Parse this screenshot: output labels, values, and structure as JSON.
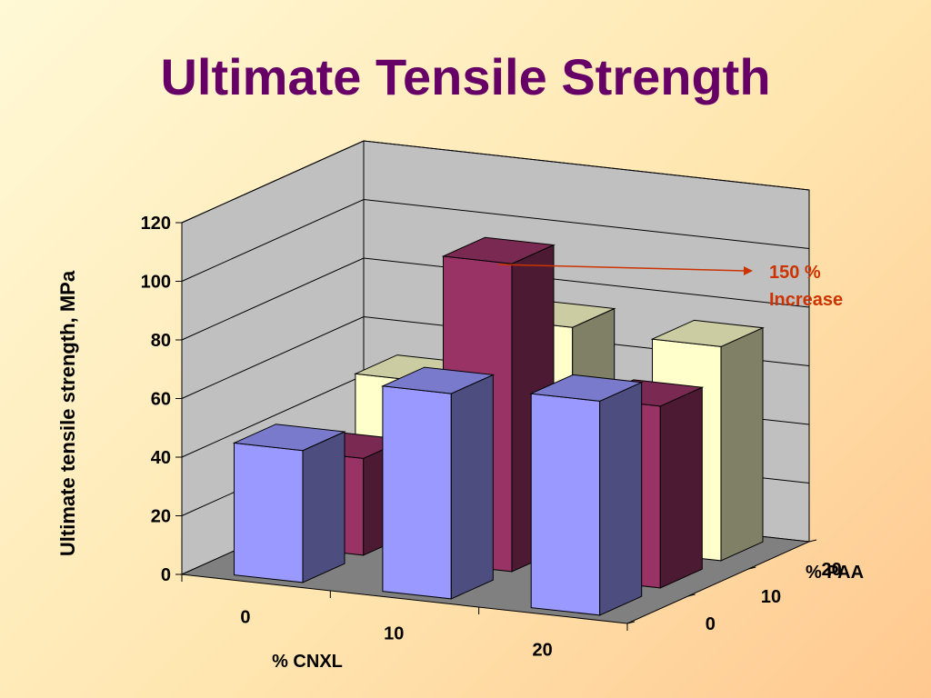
{
  "slide": {
    "title": "Ultimate Tensile Strength"
  },
  "chart_data": {
    "type": "bar",
    "subtype": "3d-clustered-column",
    "title": "",
    "ylabel": "Ultimate tensile strength, MPa",
    "xlabel": "% CNXL",
    "zlabel": "% PAA",
    "ylim": [
      0,
      120
    ],
    "yticks": [
      0,
      20,
      40,
      60,
      80,
      100,
      120
    ],
    "categories": [
      "0",
      "10",
      "20"
    ],
    "depth_categories": [
      "0",
      "10",
      "20"
    ],
    "grid": true,
    "series": [
      {
        "name": "0",
        "color": "#9999ff",
        "values": [
          45,
          70,
          73
        ]
      },
      {
        "name": "10",
        "color": "#993366",
        "values": [
          33,
          105,
          62
        ]
      },
      {
        "name": "20",
        "color": "#ffffcc",
        "values": [
          50,
          74,
          73
        ]
      }
    ],
    "annotation": {
      "line1": "150 %",
      "line2": "Increase",
      "color": "#cc3300"
    },
    "wall_color": "#c0c0c0",
    "floor_color": "#808080"
  }
}
